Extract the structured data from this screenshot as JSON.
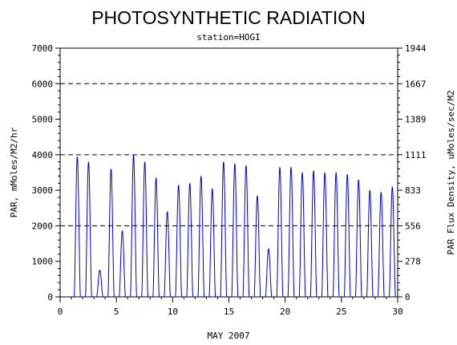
{
  "chart_data": {
    "type": "line",
    "title": "PHOTOSYNTHETIC RADIATION",
    "subtitle": "station=HOGI",
    "xlabel": "MAY 2007",
    "ylabel_left": "PAR, mMoles/M2/hr",
    "ylabel_right": "PAR Flux Density, uMoles/sec/M2",
    "xlim": [
      0,
      30
    ],
    "ylim": [
      0,
      7000
    ],
    "x_ticks": [
      "0",
      "5",
      "10",
      "15",
      "20",
      "25",
      "30"
    ],
    "y_ticks_left": [
      "0",
      "1000",
      "2000",
      "3000",
      "4000",
      "5000",
      "6000",
      "7000"
    ],
    "y_ticks_right": [
      "0",
      "278",
      "556",
      "833",
      "1111",
      "1389",
      "1667",
      "1944"
    ],
    "dashed_gridlines_y": [
      2000,
      4000,
      6000
    ],
    "line_color": "#0000cc",
    "daily_peaks": [
      {
        "day": 1,
        "peak": 3950
      },
      {
        "day": 2,
        "peak": 3800
      },
      {
        "day": 3,
        "peak": 750
      },
      {
        "day": 4,
        "peak": 3600
      },
      {
        "day": 5,
        "peak": 1850
      },
      {
        "day": 6,
        "peak": 4000
      },
      {
        "day": 7,
        "peak": 3800
      },
      {
        "day": 8,
        "peak": 3350
      },
      {
        "day": 9,
        "peak": 2400
      },
      {
        "day": 10,
        "peak": 3150
      },
      {
        "day": 11,
        "peak": 3200
      },
      {
        "day": 12,
        "peak": 3400
      },
      {
        "day": 13,
        "peak": 3050
      },
      {
        "day": 14,
        "peak": 3800
      },
      {
        "day": 15,
        "peak": 3750
      },
      {
        "day": 16,
        "peak": 3700
      },
      {
        "day": 17,
        "peak": 2850
      },
      {
        "day": 18,
        "peak": 1350
      },
      {
        "day": 19,
        "peak": 3650
      },
      {
        "day": 20,
        "peak": 3650
      },
      {
        "day": 21,
        "peak": 3500
      },
      {
        "day": 22,
        "peak": 3550
      },
      {
        "day": 23,
        "peak": 3500
      },
      {
        "day": 24,
        "peak": 3500
      },
      {
        "day": 25,
        "peak": 3450
      },
      {
        "day": 26,
        "peak": 3300
      },
      {
        "day": 27,
        "peak": 3000
      },
      {
        "day": 28,
        "peak": 2950
      },
      {
        "day": 29,
        "peak": 3100
      }
    ]
  }
}
